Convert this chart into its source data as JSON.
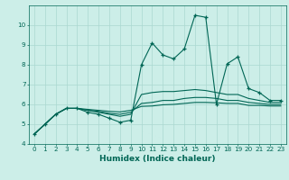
{
  "xlabel": "Humidex (Indice chaleur)",
  "bg_color": "#cceee8",
  "grid_color": "#aad8d0",
  "line_color": "#006655",
  "xlim": [
    -0.5,
    23.5
  ],
  "ylim": [
    4,
    11
  ],
  "yticks": [
    4,
    5,
    6,
    7,
    8,
    9,
    10
  ],
  "xticks": [
    0,
    1,
    2,
    3,
    4,
    5,
    6,
    7,
    8,
    9,
    10,
    11,
    12,
    13,
    14,
    15,
    16,
    17,
    18,
    19,
    20,
    21,
    22,
    23
  ],
  "series": [
    [
      4.5,
      5.0,
      5.5,
      5.8,
      5.8,
      5.6,
      5.5,
      5.3,
      5.1,
      5.2,
      8.0,
      9.1,
      8.5,
      8.3,
      8.8,
      10.5,
      10.4,
      6.0,
      8.05,
      8.4,
      6.8,
      6.6,
      6.2,
      6.2
    ],
    [
      4.5,
      5.0,
      5.5,
      5.8,
      5.8,
      5.7,
      5.6,
      5.5,
      5.4,
      5.5,
      6.5,
      6.6,
      6.65,
      6.65,
      6.7,
      6.75,
      6.7,
      6.6,
      6.5,
      6.5,
      6.3,
      6.2,
      6.1,
      6.1
    ],
    [
      4.5,
      5.0,
      5.5,
      5.8,
      5.8,
      5.7,
      5.65,
      5.55,
      5.5,
      5.6,
      6.05,
      6.1,
      6.2,
      6.2,
      6.3,
      6.35,
      6.35,
      6.3,
      6.2,
      6.2,
      6.1,
      6.05,
      6.0,
      6.0
    ],
    [
      4.5,
      5.0,
      5.5,
      5.8,
      5.8,
      5.75,
      5.7,
      5.65,
      5.62,
      5.7,
      5.9,
      5.92,
      5.98,
      6.0,
      6.05,
      6.1,
      6.1,
      6.08,
      6.05,
      6.05,
      5.95,
      5.95,
      5.92,
      5.92
    ]
  ]
}
